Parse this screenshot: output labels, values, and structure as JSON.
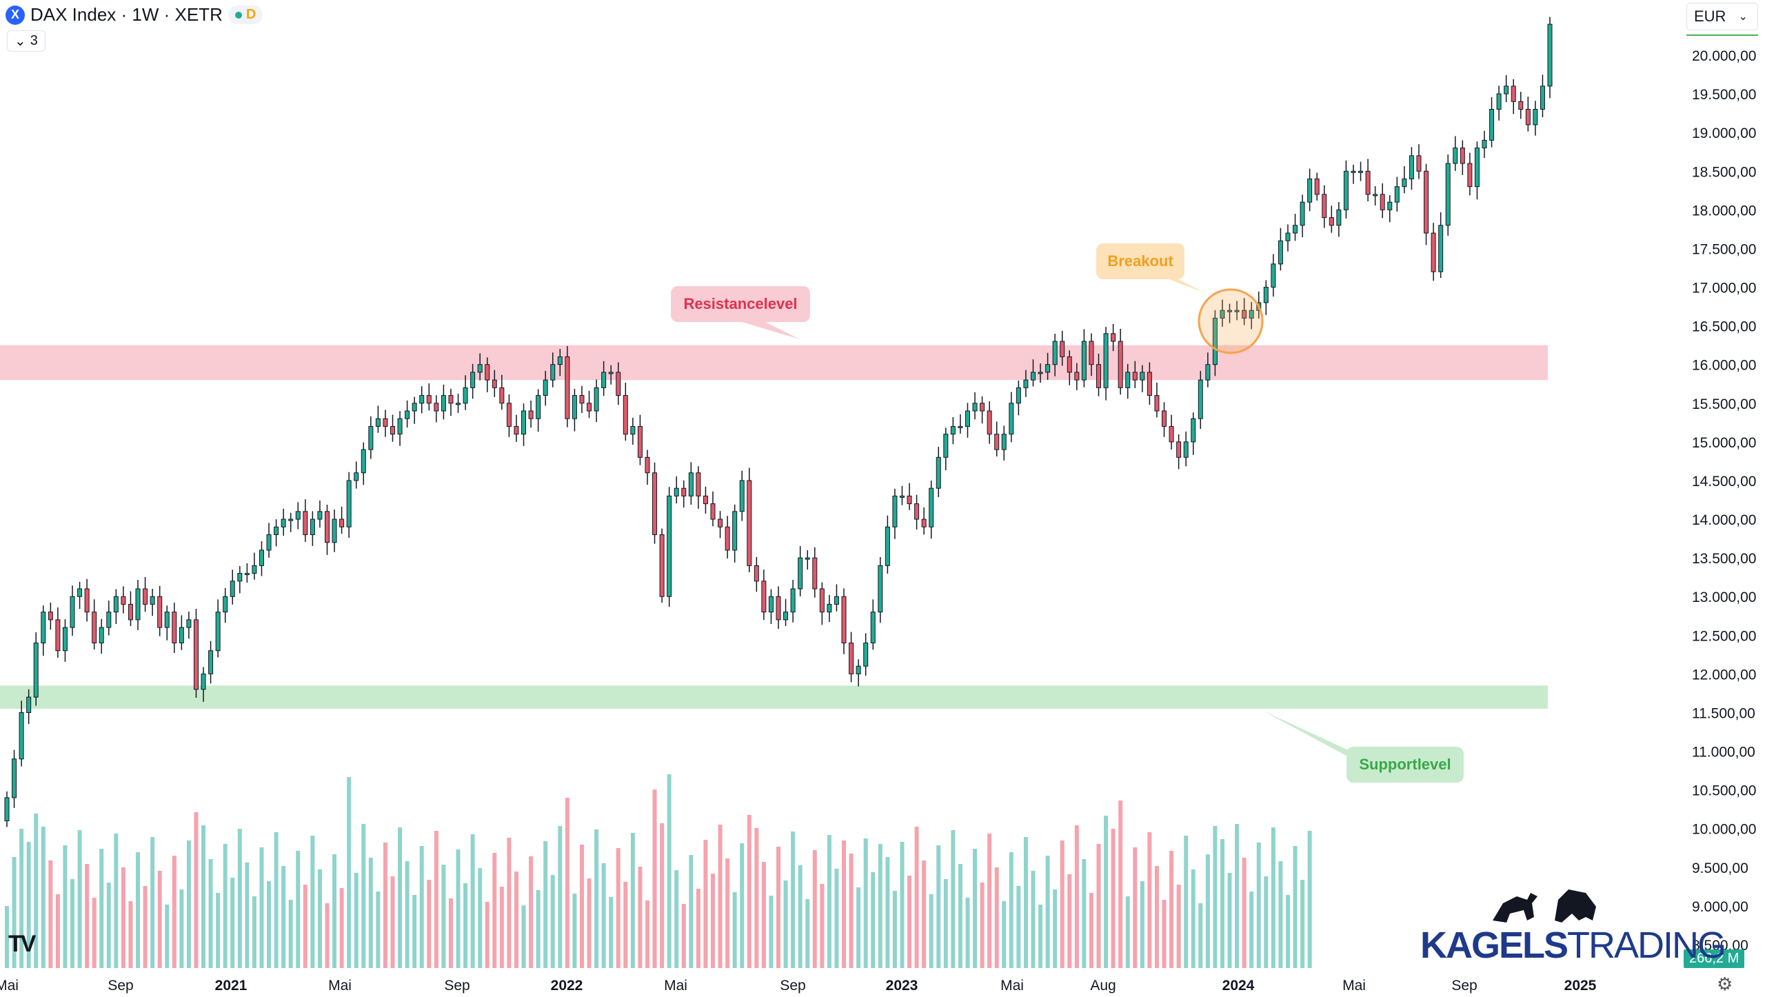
{
  "header": {
    "symbol": "DAX Index · 1W · XETR",
    "symbol_icon": "X",
    "status_tag": "D",
    "collapse_count": "3"
  },
  "currency": "EUR",
  "volume_badge": "266,2 M",
  "brand": {
    "prefix": "KAGELS",
    "suffix": "TRADING",
    "mascot_icons": [
      "bull-icon",
      "bear-icon"
    ]
  },
  "colors": {
    "up": "#22ab94",
    "down": "#e05a6a",
    "vol_up": "#8fd4cc",
    "vol_down": "#f5a3ad",
    "resistance": "#f9cbd3",
    "support": "#c9ebcd",
    "breakout": "#f9a24d"
  },
  "chart_data": {
    "type": "candlestick",
    "title": "DAX Index · 1W · XETR",
    "ylim": [
      8200,
      20550
    ],
    "y_ticks": [
      8500,
      9000,
      9500,
      10000,
      10500,
      11000,
      11500,
      12000,
      12500,
      13000,
      13500,
      14000,
      14500,
      15000,
      15500,
      16000,
      16500,
      17000,
      17500,
      18000,
      18500,
      19000,
      19500,
      20000
    ],
    "y_tick_labels": [
      "8.500,00",
      "9.000,00",
      "9.500,00",
      "10.000,00",
      "10.500,00",
      "11.000,00",
      "11.500,00",
      "12.000,00",
      "12.500,00",
      "13.000,00",
      "13.500,00",
      "14.000,00",
      "14.500,00",
      "15.000,00",
      "15.500,00",
      "16.000,00",
      "16.500,00",
      "17.000,00",
      "17.500,00",
      "18.000,00",
      "18.500,00",
      "19.000,00",
      "19.500,00",
      "20.000,00"
    ],
    "x_labels": [
      "Mai",
      "Sep",
      "2021",
      "Mai",
      "Sep",
      "2022",
      "Mai",
      "Sep",
      "2023",
      "Mai",
      "Aug",
      "2024",
      "Mai",
      "Sep",
      "2025"
    ],
    "closes": [
      10400,
      10900,
      11500,
      11700,
      12400,
      12800,
      12700,
      12300,
      12600,
      13000,
      13100,
      12800,
      12400,
      12600,
      12800,
      13000,
      12900,
      12700,
      13100,
      12900,
      13000,
      12600,
      12800,
      12400,
      12600,
      12700,
      11800,
      12000,
      12300,
      12800,
      13000,
      13200,
      13300,
      13300,
      13400,
      13600,
      13800,
      13900,
      14000,
      14000,
      14100,
      13800,
      14000,
      14100,
      13700,
      14000,
      13900,
      14500,
      14600,
      14900,
      15200,
      15300,
      15200,
      15100,
      15300,
      15400,
      15500,
      15600,
      15500,
      15400,
      15600,
      15500,
      15500,
      15700,
      15900,
      16000,
      15800,
      15700,
      15500,
      15200,
      15100,
      15400,
      15300,
      15600,
      15800,
      16000,
      16100,
      15300,
      15600,
      15500,
      15400,
      15700,
      15900,
      15900,
      15600,
      15100,
      15200,
      14800,
      14600,
      13800,
      13000,
      14300,
      14400,
      14300,
      14600,
      14300,
      14200,
      14000,
      13900,
      13600,
      14100,
      14500,
      13400,
      13200,
      12800,
      13000,
      12700,
      12800,
      13100,
      13500,
      13500,
      13100,
      12800,
      12900,
      13000,
      12400,
      12000,
      12100,
      12400,
      12800,
      13400,
      13900,
      14300,
      14300,
      14200,
      14000,
      13900,
      14400,
      14800,
      15100,
      15200,
      15200,
      15400,
      15500,
      15400,
      15100,
      14900,
      15100,
      15500,
      15700,
      15800,
      15900,
      15900,
      16000,
      16300,
      16100,
      15900,
      15800,
      16300,
      16000,
      15700,
      16400,
      16300,
      15700,
      15900,
      15800,
      15900,
      15600,
      15400,
      15200,
      15000,
      14800,
      15000,
      15300,
      15800,
      16000,
      16600,
      16700,
      16700,
      16700,
      16600,
      16700,
      16800,
      17000,
      17300,
      17600,
      17700,
      17800,
      18100,
      18400,
      18200,
      17900,
      17800,
      18000,
      18500,
      18500,
      18500,
      18200,
      18200,
      18000,
      18100,
      18300,
      18400,
      18700,
      18500,
      17700,
      17200,
      17800,
      18600,
      18800,
      18600,
      18300,
      18800,
      18900,
      19300,
      19500,
      19600,
      19400,
      19300,
      19100,
      19300,
      19600,
      20400
    ]
  }
}
